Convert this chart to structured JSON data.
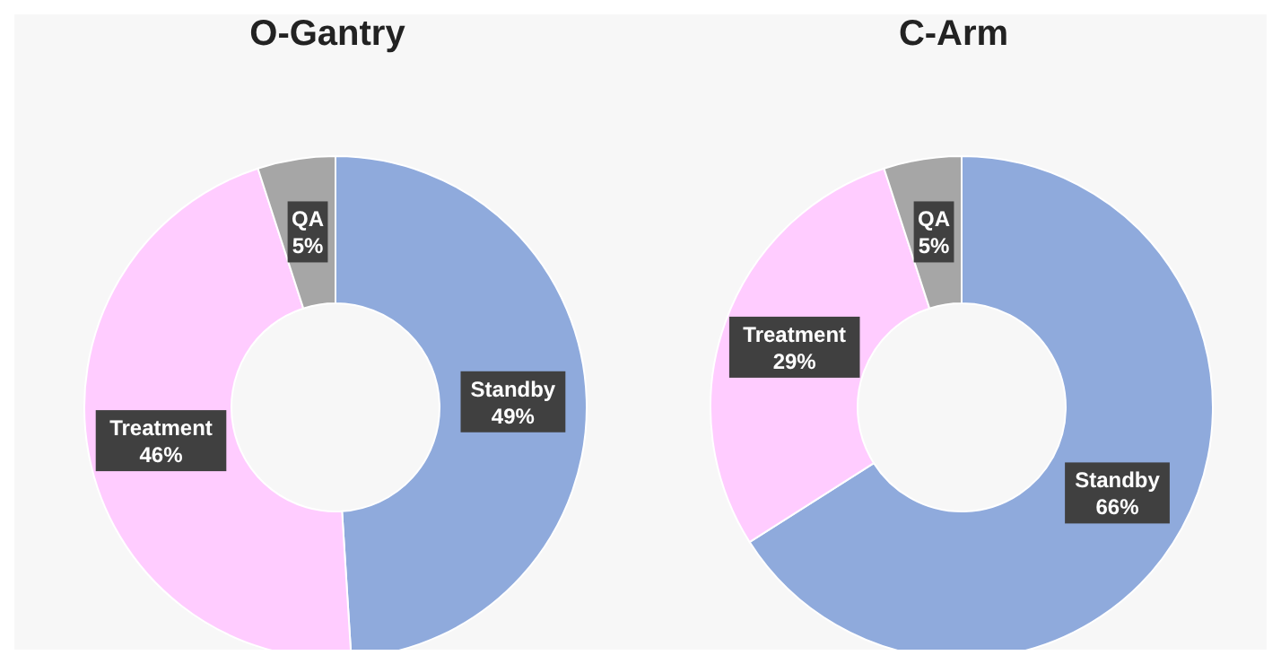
{
  "chart_data": [
    {
      "type": "donut",
      "title": "O-Gantry",
      "categories": [
        "Standby",
        "Treatment",
        "QA"
      ],
      "values": [
        49,
        46,
        5
      ],
      "colors": [
        "#8faadc",
        "#ffccff",
        "#a6a6a6"
      ],
      "value_labels": [
        "49%",
        "46%",
        "5%"
      ]
    },
    {
      "type": "donut",
      "title": "C-Arm",
      "categories": [
        "Standby",
        "Treatment",
        "QA"
      ],
      "values": [
        66,
        29,
        5
      ],
      "colors": [
        "#8faadc",
        "#ffccff",
        "#a6a6a6"
      ],
      "value_labels": [
        "66%",
        "29%",
        "5%"
      ]
    }
  ]
}
